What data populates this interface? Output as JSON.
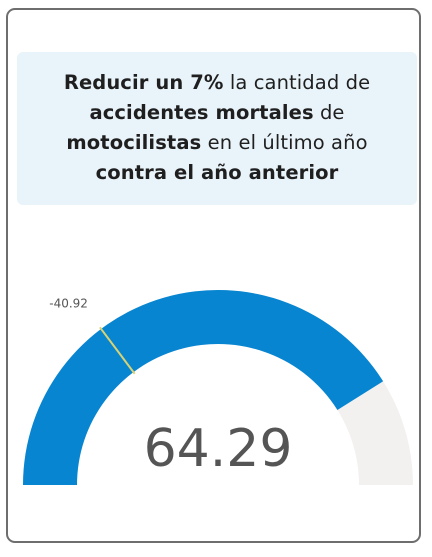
{
  "goal": {
    "line1_b1": "Reducir un 7%",
    "line1_t1": " la cantidad de",
    "line2_b1": "accidentes mortales",
    "line2_t1": " de",
    "line3_b1": "motocilistas",
    "line3_t1": " en el último año",
    "line4_b1": "contra el año anterior"
  },
  "chart_data": {
    "type": "gauge",
    "value": 64.29,
    "value_label": "64.29",
    "target": -40.92,
    "target_label": "-40.92",
    "range": [
      -100,
      100
    ],
    "colors": {
      "fill": "#0785d1",
      "track": "#f2f1f0",
      "target": "#d9d273",
      "value_text": "#555555"
    }
  }
}
